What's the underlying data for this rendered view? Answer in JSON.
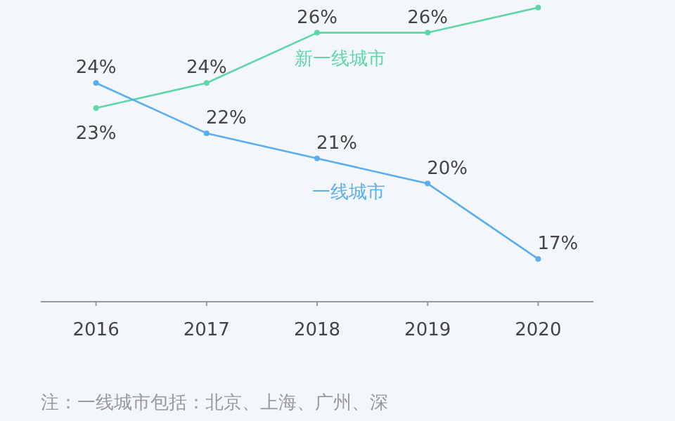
{
  "chart_data": {
    "type": "line",
    "categories": [
      "2016",
      "2017",
      "2018",
      "2019",
      "2020"
    ],
    "series": [
      {
        "name": "新一线城市",
        "color": "#5fd6a8",
        "values": [
          23,
          24,
          26,
          26,
          27
        ],
        "value_labels": [
          "23%",
          "24%",
          "26%",
          "26%",
          null
        ]
      },
      {
        "name": "一线城市",
        "color": "#5aaef0",
        "values": [
          24,
          22,
          21,
          20,
          17
        ],
        "value_labels": [
          "24%",
          "22%",
          "21%",
          "20%",
          "17%"
        ]
      }
    ],
    "tick_labels": "x",
    "marker": "circle",
    "line_style": "solid",
    "annotations": [
      "注：一线城市包括：北京、上海、广州、深"
    ]
  }
}
